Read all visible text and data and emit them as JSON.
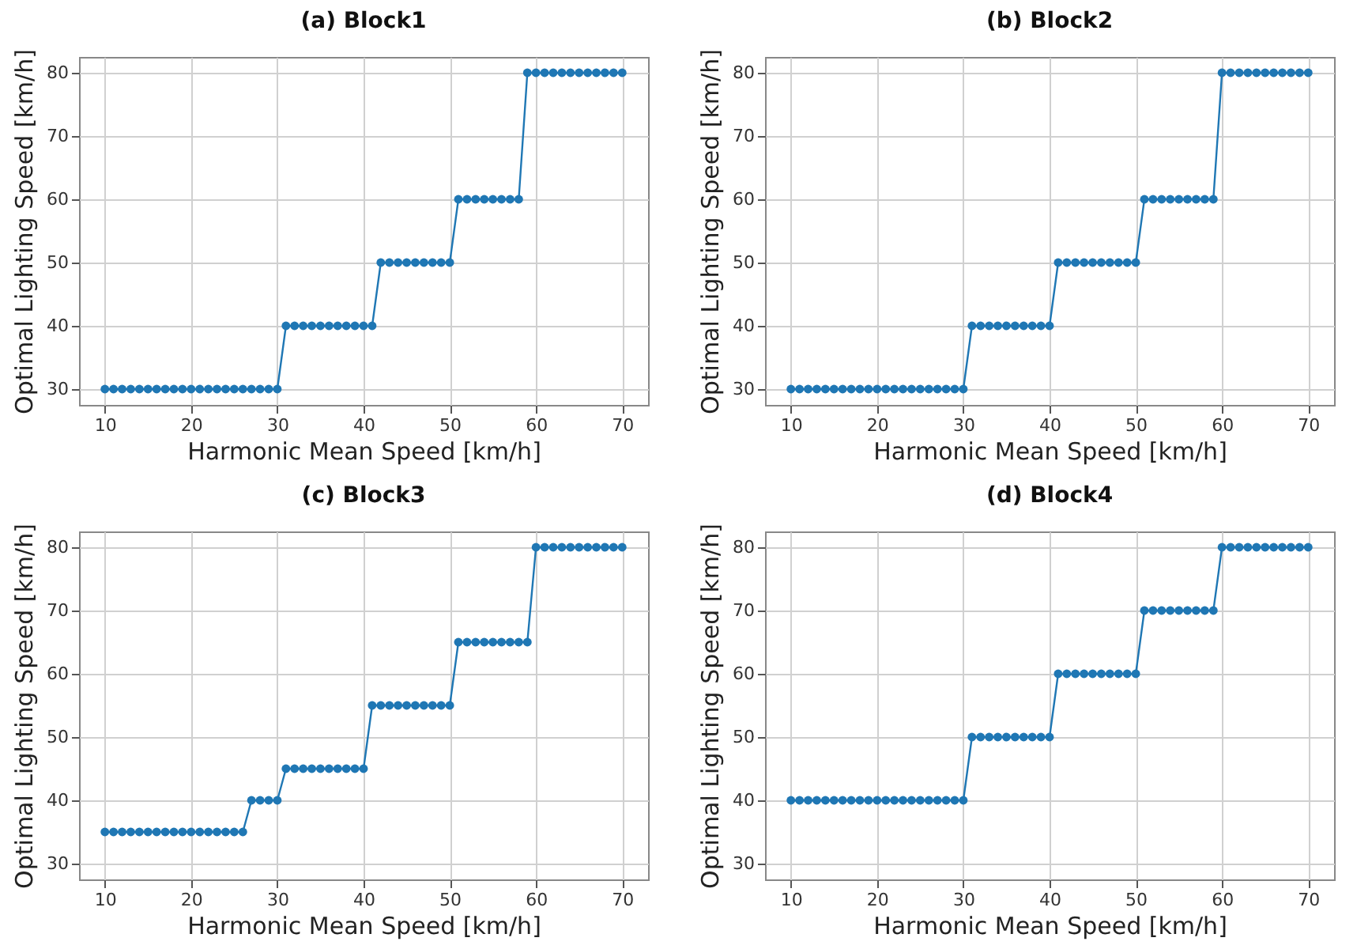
{
  "chart_data": [
    {
      "type": "line",
      "title": "(a) Block1",
      "xlabel": "Harmonic Mean Speed [km/h]",
      "ylabel": "Optimal Lighting Speed [km/h]",
      "x": [
        10,
        11,
        12,
        13,
        14,
        15,
        16,
        17,
        18,
        19,
        20,
        21,
        22,
        23,
        24,
        25,
        26,
        27,
        28,
        29,
        30,
        31,
        32,
        33,
        34,
        35,
        36,
        37,
        38,
        39,
        40,
        41,
        42,
        43,
        44,
        45,
        46,
        47,
        48,
        49,
        50,
        51,
        52,
        53,
        54,
        55,
        56,
        57,
        58,
        59,
        60,
        61,
        62,
        63,
        64,
        65,
        66,
        67,
        68,
        69,
        70
      ],
      "series": [
        {
          "color": "#1f77b4",
          "values": [
            30,
            30,
            30,
            30,
            30,
            30,
            30,
            30,
            30,
            30,
            30,
            30,
            30,
            30,
            30,
            30,
            30,
            30,
            30,
            30,
            30,
            40,
            40,
            40,
            40,
            40,
            40,
            40,
            40,
            40,
            40,
            40,
            50,
            50,
            50,
            50,
            50,
            50,
            50,
            50,
            50,
            60,
            60,
            60,
            60,
            60,
            60,
            60,
            60,
            80,
            80,
            80,
            80,
            80,
            80,
            80,
            80,
            80,
            80,
            80,
            80
          ]
        }
      ],
      "xlim": [
        7,
        73
      ],
      "ylim": [
        27.5,
        82.5
      ],
      "xticks": [
        10,
        20,
        30,
        40,
        50,
        60,
        70
      ],
      "yticks": [
        30,
        40,
        50,
        60,
        70,
        80
      ],
      "grid": true,
      "marker": "circle"
    },
    {
      "type": "line",
      "title": "(b) Block2",
      "xlabel": "Harmonic Mean Speed [km/h]",
      "ylabel": "Optimal Lighting Speed [km/h]",
      "x": [
        10,
        11,
        12,
        13,
        14,
        15,
        16,
        17,
        18,
        19,
        20,
        21,
        22,
        23,
        24,
        25,
        26,
        27,
        28,
        29,
        30,
        31,
        32,
        33,
        34,
        35,
        36,
        37,
        38,
        39,
        40,
        41,
        42,
        43,
        44,
        45,
        46,
        47,
        48,
        49,
        50,
        51,
        52,
        53,
        54,
        55,
        56,
        57,
        58,
        59,
        60,
        61,
        62,
        63,
        64,
        65,
        66,
        67,
        68,
        69,
        70
      ],
      "series": [
        {
          "color": "#1f77b4",
          "values": [
            30,
            30,
            30,
            30,
            30,
            30,
            30,
            30,
            30,
            30,
            30,
            30,
            30,
            30,
            30,
            30,
            30,
            30,
            30,
            30,
            30,
            40,
            40,
            40,
            40,
            40,
            40,
            40,
            40,
            40,
            40,
            50,
            50,
            50,
            50,
            50,
            50,
            50,
            50,
            50,
            50,
            60,
            60,
            60,
            60,
            60,
            60,
            60,
            60,
            60,
            80,
            80,
            80,
            80,
            80,
            80,
            80,
            80,
            80,
            80,
            80
          ]
        }
      ],
      "xlim": [
        7,
        73
      ],
      "ylim": [
        27.5,
        82.5
      ],
      "xticks": [
        10,
        20,
        30,
        40,
        50,
        60,
        70
      ],
      "yticks": [
        30,
        40,
        50,
        60,
        70,
        80
      ],
      "grid": true,
      "marker": "circle"
    },
    {
      "type": "line",
      "title": "(c) Block3",
      "xlabel": "Harmonic Mean Speed [km/h]",
      "ylabel": "Optimal Lighting Speed [km/h]",
      "x": [
        10,
        11,
        12,
        13,
        14,
        15,
        16,
        17,
        18,
        19,
        20,
        21,
        22,
        23,
        24,
        25,
        26,
        27,
        28,
        29,
        30,
        31,
        32,
        33,
        34,
        35,
        36,
        37,
        38,
        39,
        40,
        41,
        42,
        43,
        44,
        45,
        46,
        47,
        48,
        49,
        50,
        51,
        52,
        53,
        54,
        55,
        56,
        57,
        58,
        59,
        60,
        61,
        62,
        63,
        64,
        65,
        66,
        67,
        68,
        69,
        70
      ],
      "series": [
        {
          "color": "#1f77b4",
          "values": [
            35,
            35,
            35,
            35,
            35,
            35,
            35,
            35,
            35,
            35,
            35,
            35,
            35,
            35,
            35,
            35,
            35,
            40,
            40,
            40,
            40,
            45,
            45,
            45,
            45,
            45,
            45,
            45,
            45,
            45,
            45,
            55,
            55,
            55,
            55,
            55,
            55,
            55,
            55,
            55,
            55,
            65,
            65,
            65,
            65,
            65,
            65,
            65,
            65,
            65,
            80,
            80,
            80,
            80,
            80,
            80,
            80,
            80,
            80,
            80,
            80
          ]
        }
      ],
      "xlim": [
        7,
        73
      ],
      "ylim": [
        27.5,
        82.5
      ],
      "xticks": [
        10,
        20,
        30,
        40,
        50,
        60,
        70
      ],
      "yticks": [
        30,
        40,
        50,
        60,
        70,
        80
      ],
      "grid": true,
      "marker": "circle"
    },
    {
      "type": "line",
      "title": "(d) Block4",
      "xlabel": "Harmonic Mean Speed [km/h]",
      "ylabel": "Optimal Lighting Speed [km/h]",
      "x": [
        10,
        11,
        12,
        13,
        14,
        15,
        16,
        17,
        18,
        19,
        20,
        21,
        22,
        23,
        24,
        25,
        26,
        27,
        28,
        29,
        30,
        31,
        32,
        33,
        34,
        35,
        36,
        37,
        38,
        39,
        40,
        41,
        42,
        43,
        44,
        45,
        46,
        47,
        48,
        49,
        50,
        51,
        52,
        53,
        54,
        55,
        56,
        57,
        58,
        59,
        60,
        61,
        62,
        63,
        64,
        65,
        66,
        67,
        68,
        69,
        70
      ],
      "series": [
        {
          "color": "#1f77b4",
          "values": [
            40,
            40,
            40,
            40,
            40,
            40,
            40,
            40,
            40,
            40,
            40,
            40,
            40,
            40,
            40,
            40,
            40,
            40,
            40,
            40,
            40,
            50,
            50,
            50,
            50,
            50,
            50,
            50,
            50,
            50,
            50,
            60,
            60,
            60,
            60,
            60,
            60,
            60,
            60,
            60,
            60,
            70,
            70,
            70,
            70,
            70,
            70,
            70,
            70,
            70,
            80,
            80,
            80,
            80,
            80,
            80,
            80,
            80,
            80,
            80,
            80
          ]
        }
      ],
      "xlim": [
        7,
        73
      ],
      "ylim": [
        27.5,
        82.5
      ],
      "xticks": [
        10,
        20,
        30,
        40,
        50,
        60,
        70
      ],
      "yticks": [
        30,
        40,
        50,
        60,
        70,
        80
      ],
      "grid": true,
      "marker": "circle"
    }
  ]
}
